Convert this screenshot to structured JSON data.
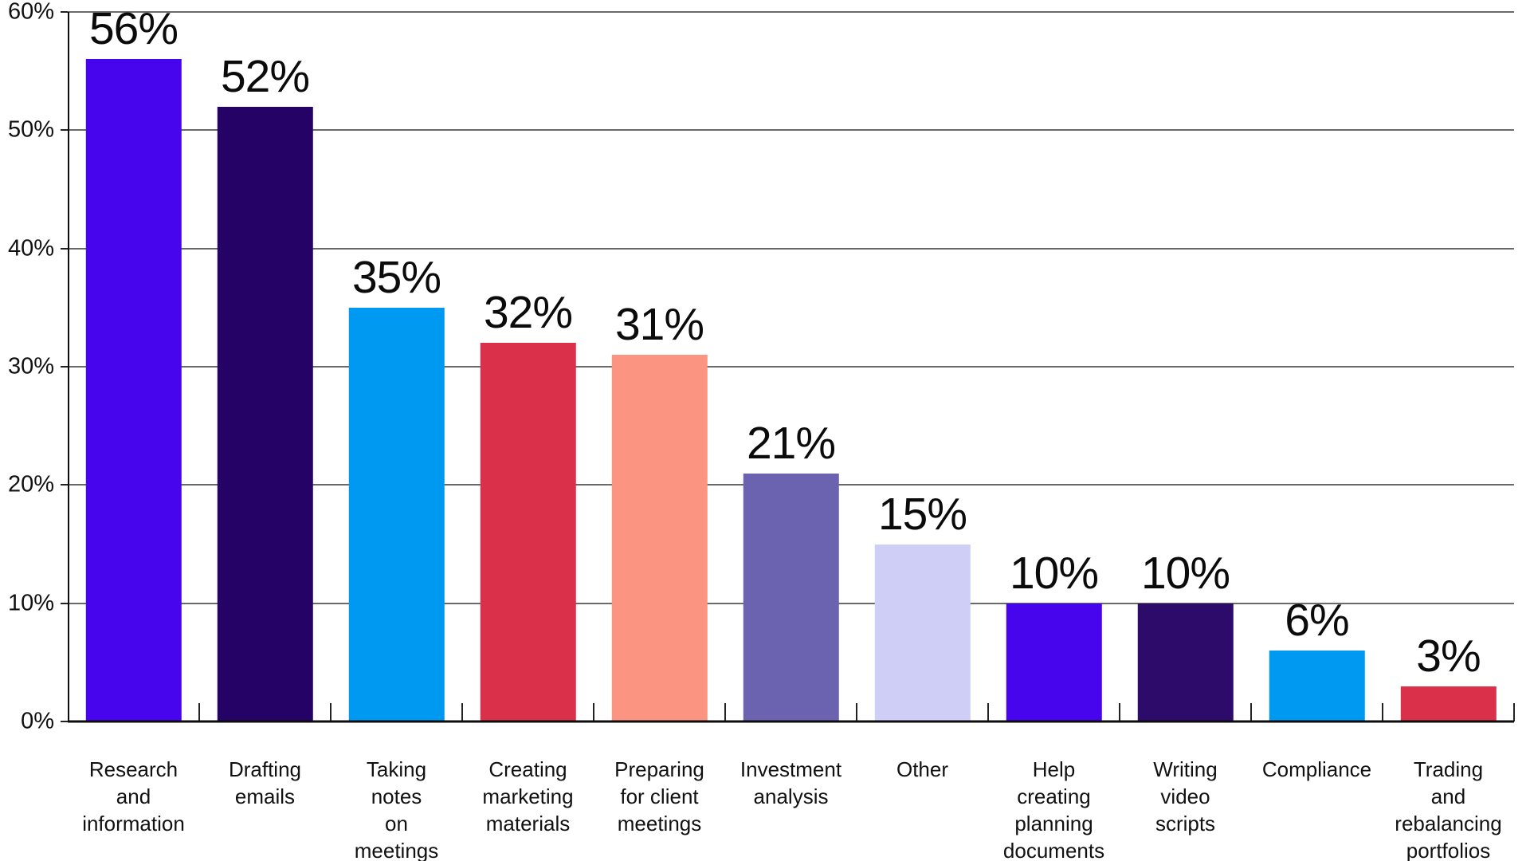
{
  "chart_data": {
    "type": "bar",
    "title": "",
    "xlabel": "",
    "ylabel": "",
    "ylim": [
      0,
      60
    ],
    "grid": true,
    "legend": false,
    "y_ticks": [
      {
        "value": 0,
        "label": "0%"
      },
      {
        "value": 10,
        "label": "10%"
      },
      {
        "value": 20,
        "label": "20%"
      },
      {
        "value": 30,
        "label": "30%"
      },
      {
        "value": 40,
        "label": "40%"
      },
      {
        "value": 50,
        "label": "50%"
      },
      {
        "value": 60,
        "label": "60%"
      }
    ],
    "categories": [
      "Research and information",
      "Drafting emails",
      "Taking notes on meetings",
      "Creating marketing materials",
      "Preparing for client meetings",
      "Investment analysis",
      "Other",
      "Help creating planning documents",
      "Writing video scripts",
      "Compliance",
      "Trading and rebalancing portfolios"
    ],
    "values": [
      56,
      52,
      35,
      32,
      31,
      21,
      15,
      10,
      10,
      6,
      3
    ],
    "bars": [
      {
        "label_lines": [
          "Research",
          "and",
          "information"
        ],
        "value": 56,
        "value_label": "56%",
        "color": "#4605ec"
      },
      {
        "label_lines": [
          "Drafting",
          "emails"
        ],
        "value": 52,
        "value_label": "52%",
        "color": "#240266"
      },
      {
        "label_lines": [
          "Taking",
          "notes",
          "on",
          "meetings"
        ],
        "value": 35,
        "value_label": "35%",
        "color": "#0099f1"
      },
      {
        "label_lines": [
          "Creating",
          "marketing",
          "materials"
        ],
        "value": 32,
        "value_label": "32%",
        "color": "#db3049"
      },
      {
        "label_lines": [
          "Preparing",
          "for client",
          "meetings"
        ],
        "value": 31,
        "value_label": "31%",
        "color": "#fc9482"
      },
      {
        "label_lines": [
          "Investment",
          "analysis"
        ],
        "value": 21,
        "value_label": "21%",
        "color": "#6c63b0"
      },
      {
        "label_lines": [
          "Other"
        ],
        "value": 15,
        "value_label": "15%",
        "color": "#cfcef7"
      },
      {
        "label_lines": [
          "Help",
          "creating",
          "planning",
          "documents"
        ],
        "value": 10,
        "value_label": "10%",
        "color": "#4605ec"
      },
      {
        "label_lines": [
          "Writing",
          "video",
          "scripts"
        ],
        "value": 10,
        "value_label": "10%",
        "color": "#2c0b6a"
      },
      {
        "label_lines": [
          "Compliance"
        ],
        "value": 6,
        "value_label": "6%",
        "color": "#0099f1"
      },
      {
        "label_lines": [
          "Trading",
          "and",
          "rebalancing",
          "portfolios"
        ],
        "value": 3,
        "value_label": "3%",
        "color": "#db3049"
      }
    ],
    "style": {
      "gridline_color": "#6a6a6a",
      "axis_color": "#0d0d0d",
      "label_color": "#111111"
    }
  }
}
